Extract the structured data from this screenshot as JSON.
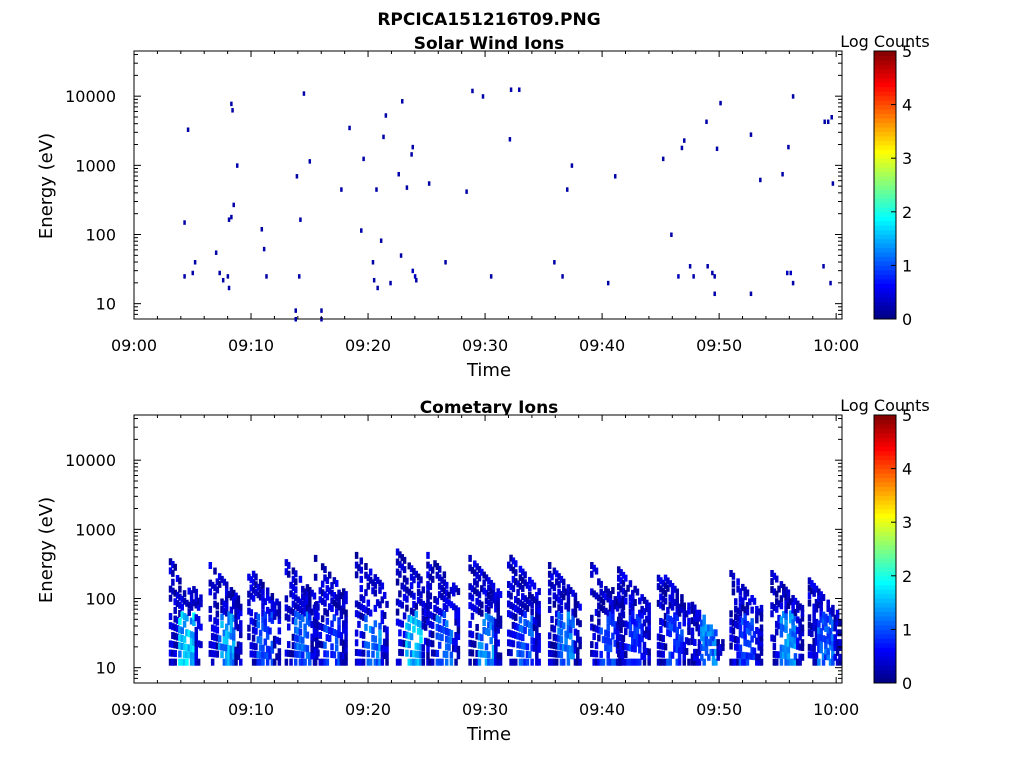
{
  "figure": {
    "title": "RPCICA151216T09.PNG"
  },
  "chart_data": [
    {
      "type": "heatmap",
      "title": "Solar Wind Ions",
      "xlabel": "Time",
      "ylabel": "Energy (eV)",
      "x_ticks": [
        "09:00",
        "09:10",
        "09:20",
        "09:30",
        "09:40",
        "09:50",
        "10:00"
      ],
      "xlim_minutes": [
        0,
        60.5
      ],
      "y_scale": "log",
      "y_ticks": [
        "10",
        "100",
        "1000",
        "10000"
      ],
      "ylim": [
        6,
        45000
      ],
      "colorbar": {
        "label": "Log Counts",
        "range": [
          0,
          5
        ],
        "ticks": [
          "0",
          "1",
          "2",
          "3",
          "4",
          "5"
        ],
        "colormap": "jet"
      },
      "points": [
        [
          4.3,
          150,
          0.2
        ],
        [
          4.6,
          3300,
          0.2
        ],
        [
          4.3,
          25,
          0.2
        ],
        [
          5.0,
          28,
          0.2
        ],
        [
          5.2,
          40,
          0.2
        ],
        [
          7.0,
          55,
          0.2
        ],
        [
          7.3,
          28,
          0.2
        ],
        [
          7.6,
          22,
          0.2
        ],
        [
          8.0,
          25,
          0.2
        ],
        [
          8.1,
          17,
          0.2
        ],
        [
          8.1,
          165,
          0.2
        ],
        [
          8.3,
          180,
          0.2
        ],
        [
          8.5,
          270,
          0.2
        ],
        [
          8.3,
          7800,
          0.2
        ],
        [
          8.4,
          6300,
          0.2
        ],
        [
          8.8,
          1000,
          0.2
        ],
        [
          10.9,
          120,
          0.2
        ],
        [
          11.1,
          62,
          0.2
        ],
        [
          11.3,
          25,
          0.2
        ],
        [
          13.8,
          8,
          0.2
        ],
        [
          13.8,
          6,
          0.2
        ],
        [
          13.9,
          700,
          0.2
        ],
        [
          14.1,
          25,
          0.2
        ],
        [
          14.2,
          165,
          0.2
        ],
        [
          14.5,
          11000,
          0.2
        ],
        [
          15.0,
          1150,
          0.2
        ],
        [
          16.0,
          8,
          0.2
        ],
        [
          16.0,
          6,
          0.2
        ],
        [
          17.7,
          450,
          0.2
        ],
        [
          18.4,
          3500,
          0.2
        ],
        [
          19.4,
          115,
          0.2
        ],
        [
          19.6,
          1250,
          0.2
        ],
        [
          20.4,
          40,
          0.2
        ],
        [
          20.5,
          22,
          0.2
        ],
        [
          20.7,
          450,
          0.2
        ],
        [
          20.8,
          17,
          0.2
        ],
        [
          21.1,
          82,
          0.2
        ],
        [
          21.3,
          2600,
          0.2
        ],
        [
          21.5,
          5300,
          0.2
        ],
        [
          21.9,
          20,
          0.2
        ],
        [
          22.6,
          750,
          0.2
        ],
        [
          22.9,
          8500,
          0.2
        ],
        [
          22.8,
          50,
          0.2
        ],
        [
          23.3,
          480,
          0.2
        ],
        [
          23.7,
          1450,
          0.2
        ],
        [
          23.8,
          1850,
          0.2
        ],
        [
          23.8,
          30,
          0.3
        ],
        [
          24.0,
          25,
          0.3
        ],
        [
          24.1,
          22,
          0.2
        ],
        [
          25.2,
          550,
          0.2
        ],
        [
          26.6,
          40,
          0.2
        ],
        [
          28.4,
          420,
          0.2
        ],
        [
          28.9,
          12000,
          0.2
        ],
        [
          29.8,
          10000,
          0.2
        ],
        [
          30.5,
          25,
          0.2
        ],
        [
          32.1,
          2400,
          0.2
        ],
        [
          32.2,
          12500,
          0.2
        ],
        [
          32.9,
          12500,
          0.2
        ],
        [
          35.9,
          40,
          0.2
        ],
        [
          36.6,
          25,
          0.2
        ],
        [
          37.0,
          450,
          0.2
        ],
        [
          37.4,
          1000,
          0.2
        ],
        [
          40.5,
          20,
          0.2
        ],
        [
          41.1,
          700,
          0.2
        ],
        [
          45.2,
          1250,
          0.2
        ],
        [
          45.9,
          100,
          0.2
        ],
        [
          46.5,
          25,
          0.3
        ],
        [
          46.8,
          1800,
          0.2
        ],
        [
          47.0,
          2300,
          0.2
        ],
        [
          47.5,
          35,
          0.2
        ],
        [
          47.8,
          25,
          0.2
        ],
        [
          48.9,
          4300,
          0.2
        ],
        [
          49.0,
          35,
          0.2
        ],
        [
          49.4,
          28,
          0.2
        ],
        [
          49.6,
          25,
          0.2
        ],
        [
          49.6,
          14,
          0.2
        ],
        [
          49.8,
          1750,
          0.2
        ],
        [
          50.1,
          8000,
          0.2
        ],
        [
          52.7,
          2800,
          0.2
        ],
        [
          52.7,
          14,
          0.2
        ],
        [
          53.5,
          620,
          0.2
        ],
        [
          55.4,
          750,
          0.2
        ],
        [
          55.9,
          1850,
          0.2
        ],
        [
          55.8,
          28,
          0.3
        ],
        [
          56.1,
          28,
          0.3
        ],
        [
          56.3,
          20,
          0.2
        ],
        [
          56.3,
          10000,
          0.2
        ],
        [
          58.9,
          35,
          0.2
        ],
        [
          59.0,
          4300,
          0.2
        ],
        [
          59.3,
          4300,
          0.2
        ],
        [
          59.5,
          20,
          0.2
        ],
        [
          59.6,
          5000,
          0.2
        ],
        [
          59.7,
          550,
          0.2
        ]
      ]
    },
    {
      "type": "heatmap",
      "title": "Cometary Ions",
      "xlabel": "Time",
      "ylabel": "Energy (eV)",
      "x_ticks": [
        "09:00",
        "09:10",
        "09:20",
        "09:30",
        "09:40",
        "09:50",
        "10:00"
      ],
      "xlim_minutes": [
        0,
        60.5
      ],
      "y_scale": "log",
      "y_ticks": [
        "10",
        "100",
        "1000",
        "10000"
      ],
      "ylim": [
        6,
        45000
      ],
      "colorbar": {
        "label": "Log Counts",
        "range": [
          0,
          5
        ],
        "ticks": [
          "0",
          "1",
          "2",
          "3",
          "4",
          "5"
        ],
        "colormap": "jet"
      },
      "bursts": [
        {
          "center": 4.4,
          "peak": 1.9,
          "top": 340
        },
        {
          "center": 7.8,
          "peak": 1.7,
          "top": 300
        },
        {
          "center": 11.1,
          "peak": 1.2,
          "top": 270
        },
        {
          "center": 14.3,
          "peak": 1.3,
          "top": 330
        },
        {
          "center": 16.8,
          "peak": 1.1,
          "top": 380
        },
        {
          "center": 20.3,
          "peak": 1.5,
          "top": 420
        },
        {
          "center": 23.8,
          "peak": 1.8,
          "top": 470
        },
        {
          "center": 26.4,
          "peak": 1.3,
          "top": 420
        },
        {
          "center": 30.0,
          "peak": 1.5,
          "top": 380
        },
        {
          "center": 33.3,
          "peak": 1.2,
          "top": 420
        },
        {
          "center": 36.8,
          "peak": 1.4,
          "top": 300
        },
        {
          "center": 40.4,
          "peak": 1.1,
          "top": 300
        },
        {
          "center": 42.7,
          "peak": 1.0,
          "top": 260
        },
        {
          "center": 46.1,
          "peak": 1.1,
          "top": 260
        },
        {
          "center": 49.0,
          "peak": 1.5,
          "top": 80
        },
        {
          "center": 52.3,
          "peak": 1.1,
          "top": 230
        },
        {
          "center": 55.8,
          "peak": 1.6,
          "top": 230
        },
        {
          "center": 59.0,
          "peak": 1.3,
          "top": 180
        }
      ],
      "energy_range_of_bursts": [
        12,
        60
      ]
    }
  ]
}
